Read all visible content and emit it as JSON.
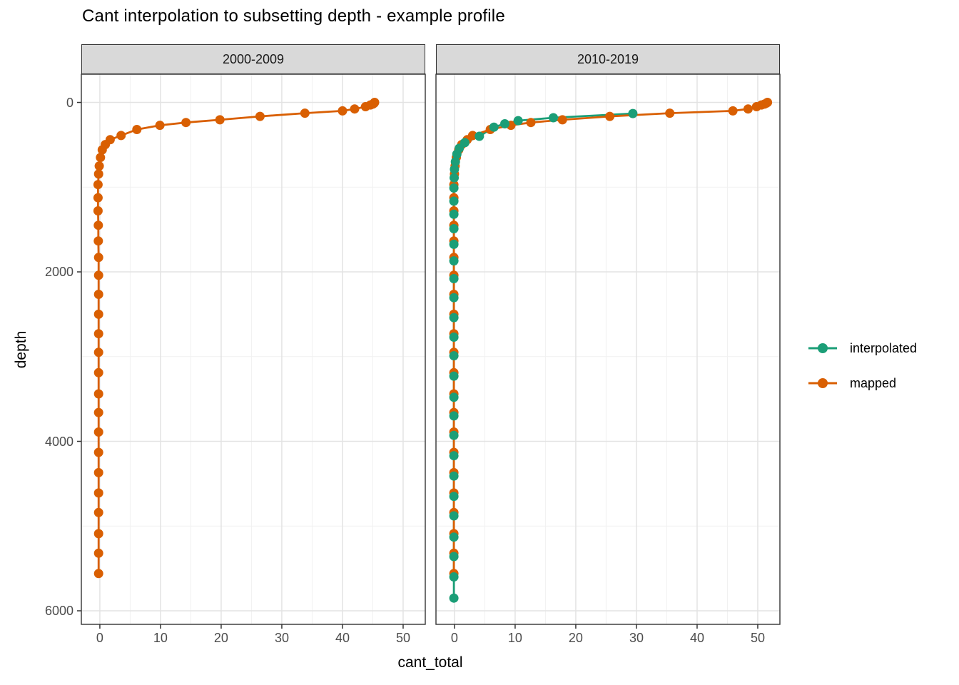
{
  "title": "Cant interpolation to subsetting depth - example profile",
  "legend": {
    "items": [
      {
        "label": "interpolated",
        "color": "#1B9E77"
      },
      {
        "label": "mapped",
        "color": "#D95F02"
      }
    ]
  },
  "colors": {
    "interpolated": "#1B9E77",
    "mapped": "#D95F02",
    "strip_fill": "#D9D9D9",
    "panel_border": "#333333",
    "grid_major": "#E3E3E3",
    "grid_minor": "#F1F1F1",
    "tick_mark": "#333333",
    "tick_label": "#4D4D4D"
  },
  "chart_data": {
    "type": "line",
    "title": "Cant interpolation to subsetting depth - example profile",
    "xlabel": "cant_total",
    "ylabel": "depth",
    "x_ticks": [
      0,
      10,
      20,
      30,
      40,
      50
    ],
    "y_ticks": [
      0,
      2000,
      4000,
      6000
    ],
    "x_minor": [
      5,
      15,
      25,
      35,
      45
    ],
    "y_minor": [
      1000,
      3000,
      5000
    ],
    "x_range": [
      -3.05,
      53.65
    ],
    "y_range": [
      -333,
      6160
    ],
    "y_reversed": true,
    "grid": true,
    "legend_position": "right",
    "facets": [
      {
        "label": "2000-2009",
        "series": [
          {
            "name": "mapped",
            "points": [
              [
                45.3,
                0
              ],
              [
                45.2,
                10
              ],
              [
                45.0,
                20
              ],
              [
                44.6,
                30
              ],
              [
                43.8,
                50
              ],
              [
                42.0,
                77
              ],
              [
                40.0,
                100
              ],
              [
                33.8,
                127
              ],
              [
                26.4,
                165
              ],
              [
                19.8,
                205
              ],
              [
                14.2,
                237
              ],
              [
                9.9,
                270
              ],
              [
                6.1,
                320
              ],
              [
                3.5,
                390
              ],
              [
                1.7,
                440
              ],
              [
                0.9,
                497
              ],
              [
                0.4,
                560
              ],
              [
                0.1,
                650
              ],
              [
                -0.1,
                750
              ],
              [
                -0.2,
                845
              ],
              [
                -0.3,
                970
              ],
              [
                -0.3,
                1125
              ],
              [
                -0.3,
                1280
              ],
              [
                -0.25,
                1450
              ],
              [
                -0.25,
                1635
              ],
              [
                -0.2,
                1830
              ],
              [
                -0.2,
                2040
              ],
              [
                -0.2,
                2265
              ],
              [
                -0.2,
                2500
              ],
              [
                -0.2,
                2730
              ],
              [
                -0.2,
                2950
              ],
              [
                -0.2,
                3190
              ],
              [
                -0.2,
                3440
              ],
              [
                -0.2,
                3660
              ],
              [
                -0.2,
                3890
              ],
              [
                -0.2,
                4130
              ],
              [
                -0.2,
                4370
              ],
              [
                -0.2,
                4610
              ],
              [
                -0.2,
                4840
              ],
              [
                -0.2,
                5090
              ],
              [
                -0.2,
                5320
              ],
              [
                -0.2,
                5560
              ]
            ]
          }
        ]
      },
      {
        "label": "2010-2019",
        "series": [
          {
            "name": "interpolated",
            "points": [
              [
                29.4,
                131
              ],
              [
                16.3,
                181
              ],
              [
                10.5,
                215
              ],
              [
                8.3,
                252
              ],
              [
                6.5,
                292
              ],
              [
                4.1,
                400
              ],
              [
                1.7,
                475
              ],
              [
                0.8,
                540
              ],
              [
                0.4,
                610
              ],
              [
                0.15,
                700
              ],
              [
                0.0,
                790
              ],
              [
                -0.05,
                890
              ],
              [
                -0.1,
                1010
              ],
              [
                -0.1,
                1165
              ],
              [
                -0.1,
                1320
              ],
              [
                -0.1,
                1490
              ],
              [
                -0.1,
                1675
              ],
              [
                -0.1,
                1870
              ],
              [
                -0.1,
                2080
              ],
              [
                -0.1,
                2305
              ],
              [
                -0.1,
                2540
              ],
              [
                -0.1,
                2770
              ],
              [
                -0.1,
                2990
              ],
              [
                -0.1,
                3230
              ],
              [
                -0.1,
                3480
              ],
              [
                -0.1,
                3700
              ],
              [
                -0.1,
                3930
              ],
              [
                -0.1,
                4170
              ],
              [
                -0.1,
                4410
              ],
              [
                -0.1,
                4650
              ],
              [
                -0.1,
                4880
              ],
              [
                -0.1,
                5130
              ],
              [
                -0.1,
                5360
              ],
              [
                -0.1,
                5600
              ],
              [
                -0.1,
                5850
              ]
            ]
          },
          {
            "name": "mapped",
            "points": [
              [
                51.6,
                0
              ],
              [
                51.4,
                10
              ],
              [
                51.1,
                20
              ],
              [
                50.6,
                30
              ],
              [
                49.8,
                50
              ],
              [
                48.4,
                77
              ],
              [
                45.9,
                100
              ],
              [
                35.5,
                127
              ],
              [
                25.6,
                165
              ],
              [
                17.8,
                205
              ],
              [
                12.6,
                237
              ],
              [
                9.3,
                270
              ],
              [
                5.9,
                320
              ],
              [
                3.0,
                390
              ],
              [
                2.1,
                440
              ],
              [
                1.2,
                497
              ],
              [
                0.7,
                560
              ],
              [
                0.3,
                650
              ],
              [
                0.1,
                750
              ],
              [
                0.0,
                845
              ],
              [
                -0.1,
                970
              ],
              [
                -0.1,
                1125
              ],
              [
                -0.1,
                1280
              ],
              [
                -0.1,
                1450
              ],
              [
                -0.1,
                1635
              ],
              [
                -0.1,
                1830
              ],
              [
                -0.1,
                2040
              ],
              [
                -0.1,
                2265
              ],
              [
                -0.1,
                2500
              ],
              [
                -0.1,
                2730
              ],
              [
                -0.1,
                2950
              ],
              [
                -0.1,
                3190
              ],
              [
                -0.1,
                3440
              ],
              [
                -0.1,
                3660
              ],
              [
                -0.1,
                3890
              ],
              [
                -0.1,
                4130
              ],
              [
                -0.1,
                4370
              ],
              [
                -0.1,
                4610
              ],
              [
                -0.1,
                4840
              ],
              [
                -0.1,
                5090
              ],
              [
                -0.1,
                5320
              ],
              [
                -0.1,
                5560
              ]
            ]
          }
        ]
      }
    ]
  }
}
